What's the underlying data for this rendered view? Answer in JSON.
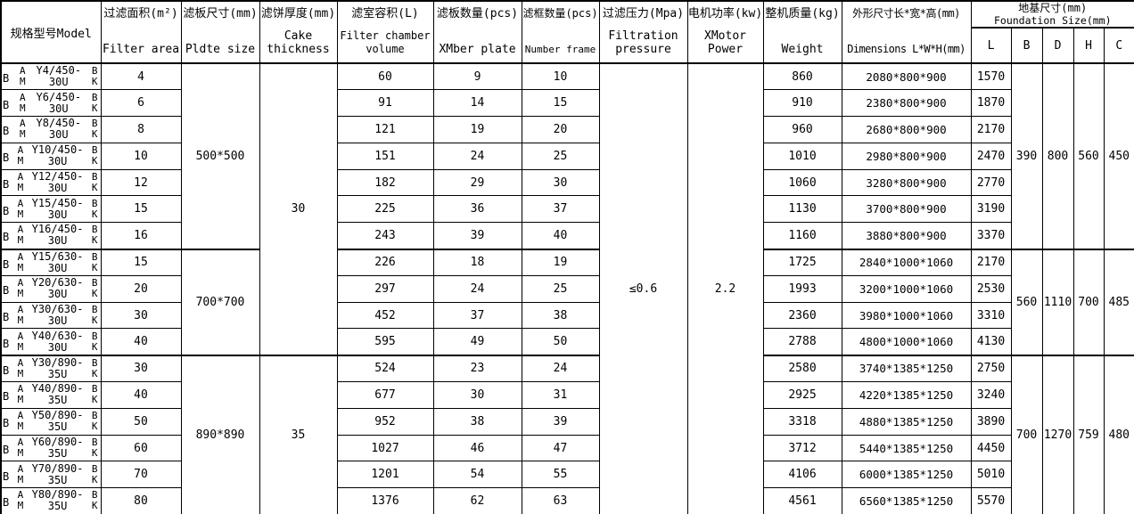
{
  "chart_data": {
    "type": "table",
    "headers": {
      "model": "规格型号Model",
      "filter_area": {
        "zh": "过滤面积(m²)",
        "en": "Filter area"
      },
      "plate_size": {
        "zh": "滤板尺寸(mm)",
        "en": "Pldte size"
      },
      "cake_thickness": {
        "zh": "滤饼厚度(mm)",
        "en": "Cake\nthickness"
      },
      "volume": {
        "zh": "滤室容积(L)",
        "en": "Filter chamber\nvolume"
      },
      "plate_qty": {
        "zh": "滤板数量(pcs)",
        "en": "XMber plate"
      },
      "frame_qty": {
        "zh": "滤框数量(pcs)",
        "en": "Number frame"
      },
      "pressure": {
        "zh": "过滤压力(Mpa)",
        "en": "Filtration\npressure"
      },
      "power": {
        "zh": "电机功率(kw)",
        "en": "XMotor\nPower"
      },
      "weight": {
        "zh": "整机质量(kg)",
        "en": "Weight"
      },
      "dimensions": {
        "zh": "外形尺寸长*宽*高(mm)",
        "en": "Dimensions L*W*H(mm)"
      },
      "foundation": {
        "zh": "地基尺寸(mm)",
        "en": "Foundation Size(mm)",
        "subs": [
          "L",
          "B",
          "D",
          "H",
          "C"
        ]
      }
    },
    "model_variant": {
      "prefix": "B",
      "left_stack": [
        "A",
        "M"
      ],
      "right_stack": [
        "B",
        "K"
      ]
    },
    "shared": {
      "pressure": "≤0.6",
      "power": "2.2"
    },
    "groups": [
      {
        "plate_size": "500*500",
        "cake_thickness": "30",
        "foundation": {
          "B": "390",
          "D": "800",
          "H": "560",
          "C": "450"
        },
        "rows": [
          {
            "model_top": "Y4/450-",
            "model_bottom": "30U",
            "filter_area": "4",
            "volume": "60",
            "plates": "9",
            "frames": "10",
            "weight": "860",
            "dimensions": "2080*800*900",
            "L": "1570"
          },
          {
            "model_top": "Y6/450-",
            "model_bottom": "30U",
            "filter_area": "6",
            "volume": "91",
            "plates": "14",
            "frames": "15",
            "weight": "910",
            "dimensions": "2380*800*900",
            "L": "1870"
          },
          {
            "model_top": "Y8/450-",
            "model_bottom": "30U",
            "filter_area": "8",
            "volume": "121",
            "plates": "19",
            "frames": "20",
            "weight": "960",
            "dimensions": "2680*800*900",
            "L": "2170"
          },
          {
            "model_top": "Y10/450-",
            "model_bottom": "30U",
            "filter_area": "10",
            "volume": "151",
            "plates": "24",
            "frames": "25",
            "weight": "1010",
            "dimensions": "2980*800*900",
            "L": "2470"
          },
          {
            "model_top": "Y12/450-",
            "model_bottom": "30U",
            "filter_area": "12",
            "volume": "182",
            "plates": "29",
            "frames": "30",
            "weight": "1060",
            "dimensions": "3280*800*900",
            "L": "2770"
          },
          {
            "model_top": "Y15/450-",
            "model_bottom": "30U",
            "filter_area": "15",
            "volume": "225",
            "plates": "36",
            "frames": "37",
            "weight": "1130",
            "dimensions": "3700*800*900",
            "L": "3190"
          },
          {
            "model_top": "Y16/450-",
            "model_bottom": "30U",
            "filter_area": "16",
            "volume": "243",
            "plates": "39",
            "frames": "40",
            "weight": "1160",
            "dimensions": "3880*800*900",
            "L": "3370"
          }
        ]
      },
      {
        "plate_size": "700*700",
        "cake_thickness": "30",
        "foundation": {
          "B": "560",
          "D": "1110",
          "H": "700",
          "C": "485"
        },
        "rows": [
          {
            "model_top": "Y15/630-",
            "model_bottom": "30U",
            "filter_area": "15",
            "volume": "226",
            "plates": "18",
            "frames": "19",
            "weight": "1725",
            "dimensions": "2840*1000*1060",
            "L": "2170"
          },
          {
            "model_top": "Y20/630-",
            "model_bottom": "30U",
            "filter_area": "20",
            "volume": "297",
            "plates": "24",
            "frames": "25",
            "weight": "1993",
            "dimensions": "3200*1000*1060",
            "L": "2530"
          },
          {
            "model_top": "Y30/630-",
            "model_bottom": "30U",
            "filter_area": "30",
            "volume": "452",
            "plates": "37",
            "frames": "38",
            "weight": "2360",
            "dimensions": "3980*1000*1060",
            "L": "3310"
          },
          {
            "model_top": "Y40/630-",
            "model_bottom": "30U",
            "filter_area": "40",
            "volume": "595",
            "plates": "49",
            "frames": "50",
            "weight": "2788",
            "dimensions": "4800*1000*1060",
            "L": "4130"
          }
        ]
      },
      {
        "plate_size": "890*890",
        "cake_thickness": "35",
        "foundation": {
          "B": "700",
          "D": "1270",
          "H": "759",
          "C": "480"
        },
        "rows": [
          {
            "model_top": "Y30/890-",
            "model_bottom": "35U",
            "filter_area": "30",
            "volume": "524",
            "plates": "23",
            "frames": "24",
            "weight": "2580",
            "dimensions": "3740*1385*1250",
            "L": "2750"
          },
          {
            "model_top": "Y40/890-",
            "model_bottom": "35U",
            "filter_area": "40",
            "volume": "677",
            "plates": "30",
            "frames": "31",
            "weight": "2925",
            "dimensions": "4220*1385*1250",
            "L": "3240"
          },
          {
            "model_top": "Y50/890-",
            "model_bottom": "35U",
            "filter_area": "50",
            "volume": "952",
            "plates": "38",
            "frames": "39",
            "weight": "3318",
            "dimensions": "4880*1385*1250",
            "L": "3890"
          },
          {
            "model_top": "Y60/890-",
            "model_bottom": "35U",
            "filter_area": "60",
            "volume": "1027",
            "plates": "46",
            "frames": "47",
            "weight": "3712",
            "dimensions": "5440*1385*1250",
            "L": "4450"
          },
          {
            "model_top": "Y70/890-",
            "model_bottom": "35U",
            "filter_area": "70",
            "volume": "1201",
            "plates": "54",
            "frames": "55",
            "weight": "4106",
            "dimensions": "6000*1385*1250",
            "L": "5010"
          },
          {
            "model_top": "Y80/890-",
            "model_bottom": "35U",
            "filter_area": "80",
            "volume": "1376",
            "plates": "62",
            "frames": "63",
            "weight": "4561",
            "dimensions": "6560*1385*1250",
            "L": "5570"
          }
        ]
      }
    ]
  }
}
